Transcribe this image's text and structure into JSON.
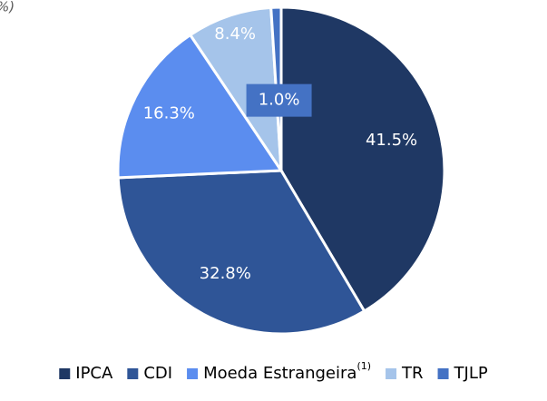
{
  "chart_data": {
    "type": "pie",
    "title": "%)",
    "categories": [
      "IPCA",
      "CDI",
      "Moeda Estrangeira",
      "TR",
      "TJLP"
    ],
    "category_superscripts": [
      null,
      null,
      "(1)",
      null,
      null
    ],
    "values": [
      41.5,
      32.8,
      16.3,
      8.4,
      1.0
    ],
    "value_labels": [
      "41.5%",
      "32.8%",
      "16.3%",
      "8.4%",
      "1.0%"
    ],
    "colors": [
      "#1f3864",
      "#2f5597",
      "#5b8def",
      "#a5c4ea",
      "#4472c4"
    ],
    "legend": "bottom"
  }
}
